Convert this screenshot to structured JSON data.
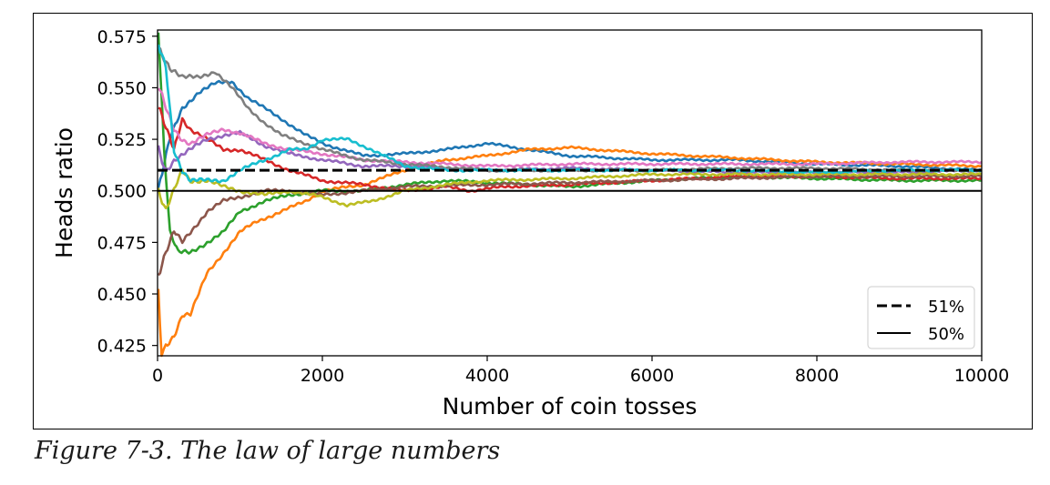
{
  "chart_data": {
    "type": "line",
    "title": "",
    "xlabel": "Number of coin tosses",
    "ylabel": "Heads ratio",
    "xlim": [
      0,
      10000
    ],
    "ylim": [
      0.42,
      0.578
    ],
    "xticks": [
      0,
      2000,
      4000,
      6000,
      8000,
      10000
    ],
    "xtick_labels": [
      "0",
      "2000",
      "4000",
      "6000",
      "8000",
      "10000"
    ],
    "yticks": [
      0.425,
      0.45,
      0.475,
      0.5,
      0.525,
      0.55,
      0.575
    ],
    "ytick_labels": [
      "0.425",
      "0.450",
      "0.475",
      "0.500",
      "0.525",
      "0.550",
      "0.575"
    ],
    "grid": false,
    "legend_position": "lower right",
    "reference_lines": [
      {
        "name": "51%",
        "y": 0.51,
        "style": "dashed",
        "color": "#000000"
      },
      {
        "name": "50%",
        "y": 0.5,
        "style": "solid",
        "color": "#000000"
      }
    ],
    "series": [
      {
        "color": "#1f77b4",
        "x": [
          10,
          150,
          300,
          500,
          700,
          900,
          1100,
          1300,
          1500,
          1800,
          2000,
          2500,
          3000,
          3500,
          4000,
          4500,
          5000,
          6000,
          7000,
          8000,
          9000,
          10000
        ],
        "y": [
          0.5,
          0.525,
          0.54,
          0.548,
          0.552,
          0.553,
          0.545,
          0.54,
          0.535,
          0.527,
          0.523,
          0.517,
          0.518,
          0.52,
          0.523,
          0.52,
          0.517,
          0.515,
          0.515,
          0.513,
          0.512,
          0.51
        ]
      },
      {
        "color": "#ff7f0e",
        "x": [
          10,
          50,
          100,
          200,
          300,
          400,
          500,
          600,
          800,
          1000,
          1200,
          1500,
          1800,
          2000,
          2500,
          3000,
          3500,
          4000,
          4500,
          5000,
          6000,
          7000,
          8000,
          9000,
          10000
        ],
        "y": [
          0.45,
          0.42,
          0.425,
          0.43,
          0.44,
          0.44,
          0.45,
          0.46,
          0.47,
          0.48,
          0.485,
          0.49,
          0.495,
          0.5,
          0.503,
          0.51,
          0.515,
          0.517,
          0.52,
          0.521,
          0.518,
          0.516,
          0.514,
          0.513,
          0.512
        ]
      },
      {
        "color": "#2ca02c",
        "x": [
          10,
          80,
          150,
          250,
          400,
          600,
          800,
          1000,
          1300,
          1600,
          2000,
          2500,
          3000,
          3500,
          4000,
          5000,
          6000,
          7000,
          8000,
          9000,
          10000
        ],
        "y": [
          0.58,
          0.52,
          0.48,
          0.47,
          0.47,
          0.475,
          0.48,
          0.49,
          0.495,
          0.498,
          0.5,
          0.5,
          0.503,
          0.505,
          0.504,
          0.502,
          0.505,
          0.507,
          0.506,
          0.505,
          0.505
        ]
      },
      {
        "color": "#d62728",
        "x": [
          10,
          100,
          200,
          300,
          400,
          600,
          800,
          1000,
          1300,
          1600,
          2000,
          2500,
          3000,
          3500,
          3800,
          4200,
          5000,
          6000,
          7000,
          8000,
          9000,
          10000
        ],
        "y": [
          0.54,
          0.53,
          0.52,
          0.535,
          0.53,
          0.525,
          0.52,
          0.52,
          0.515,
          0.51,
          0.505,
          0.503,
          0.5,
          0.502,
          0.5,
          0.502,
          0.503,
          0.505,
          0.507,
          0.507,
          0.506,
          0.506
        ]
      },
      {
        "color": "#9467bd",
        "x": [
          10,
          100,
          200,
          400,
          600,
          800,
          1000,
          1300,
          1600,
          2000,
          2500,
          3000,
          4000,
          5000,
          6000,
          7000,
          8000,
          9000,
          10000
        ],
        "y": [
          0.52,
          0.51,
          0.515,
          0.52,
          0.525,
          0.527,
          0.528,
          0.522,
          0.518,
          0.515,
          0.512,
          0.512,
          0.51,
          0.511,
          0.51,
          0.509,
          0.509,
          0.509,
          0.51
        ]
      },
      {
        "color": "#8c564b",
        "x": [
          10,
          100,
          200,
          300,
          400,
          600,
          800,
          1000,
          1300,
          1600,
          2000,
          2500,
          3000,
          4000,
          5000,
          6000,
          7000,
          8000,
          9000,
          10000
        ],
        "y": [
          0.46,
          0.47,
          0.48,
          0.475,
          0.48,
          0.49,
          0.495,
          0.497,
          0.5,
          0.5,
          0.498,
          0.5,
          0.502,
          0.503,
          0.504,
          0.505,
          0.506,
          0.507,
          0.507,
          0.507
        ]
      },
      {
        "color": "#e377c2",
        "x": [
          10,
          100,
          200,
          300,
          400,
          600,
          800,
          1000,
          1300,
          1600,
          2000,
          2500,
          3000,
          4000,
          5000,
          6000,
          7000,
          8000,
          9000,
          10000
        ],
        "y": [
          0.55,
          0.54,
          0.53,
          0.525,
          0.523,
          0.527,
          0.53,
          0.528,
          0.523,
          0.52,
          0.518,
          0.515,
          0.514,
          0.512,
          0.513,
          0.513,
          0.513,
          0.513,
          0.514,
          0.514
        ]
      },
      {
        "color": "#7f7f7f",
        "x": [
          10,
          150,
          300,
          500,
          700,
          900,
          1100,
          1300,
          1500,
          1800,
          2000,
          2500,
          3000,
          4000,
          5000,
          6000,
          7000,
          8000,
          9000,
          10000
        ],
        "y": [
          0.57,
          0.56,
          0.555,
          0.555,
          0.558,
          0.55,
          0.54,
          0.533,
          0.527,
          0.523,
          0.52,
          0.515,
          0.513,
          0.51,
          0.51,
          0.51,
          0.511,
          0.511,
          0.51,
          0.51
        ]
      },
      {
        "color": "#bcbd22",
        "x": [
          10,
          100,
          200,
          300,
          400,
          600,
          800,
          1000,
          1300,
          1600,
          2000,
          2300,
          2600,
          3000,
          3500,
          4000,
          5000,
          6000,
          7000,
          8000,
          9000,
          10000
        ],
        "y": [
          0.5,
          0.49,
          0.5,
          0.51,
          0.505,
          0.505,
          0.502,
          0.5,
          0.498,
          0.5,
          0.497,
          0.493,
          0.495,
          0.5,
          0.503,
          0.505,
          0.506,
          0.508,
          0.508,
          0.508,
          0.508,
          0.508
        ]
      },
      {
        "color": "#17becf",
        "x": [
          10,
          100,
          200,
          300,
          400,
          600,
          800,
          1000,
          1300,
          1600,
          1800,
          2000,
          2300,
          2600,
          3000,
          3500,
          4000,
          5000,
          6000,
          7000,
          8000,
          9000,
          10000
        ],
        "y": [
          0.57,
          0.56,
          0.52,
          0.51,
          0.505,
          0.505,
          0.505,
          0.51,
          0.515,
          0.52,
          0.52,
          0.525,
          0.525,
          0.52,
          0.512,
          0.51,
          0.51,
          0.51,
          0.51,
          0.51,
          0.509,
          0.51,
          0.51
        ]
      }
    ]
  },
  "caption": "Figure 7-3. The law of large numbers"
}
